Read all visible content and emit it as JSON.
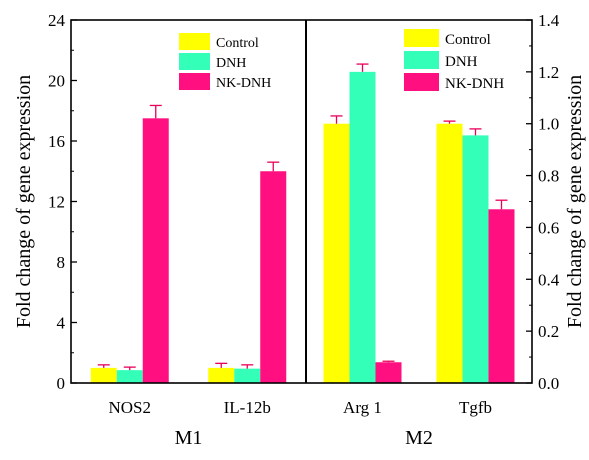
{
  "colors": {
    "control": "#ffff00",
    "dnh": "#33ffb8",
    "nkdnh": "#ff0f80",
    "error_bar": "#e8005a",
    "axis": "#000000"
  },
  "chart_data": [
    {
      "type": "bar",
      "panel_label": "M1",
      "categories": [
        "NOS2",
        "IL-12b"
      ],
      "ylabel": "Fold change of gene expression",
      "ylim": [
        0,
        24
      ],
      "yticks": [
        0,
        4,
        8,
        12,
        16,
        20,
        24
      ],
      "ytick_labels": [
        "0",
        "4",
        "8",
        "12",
        "16",
        "20",
        "24"
      ],
      "legend_position": "top-right",
      "series": [
        {
          "name": "Control",
          "values": [
            1.0,
            1.0
          ],
          "errors": [
            0.2,
            0.3
          ]
        },
        {
          "name": "DNH",
          "values": [
            0.85,
            0.95
          ],
          "errors": [
            0.2,
            0.25
          ]
        },
        {
          "name": "NK-DNH",
          "values": [
            17.5,
            14.0
          ],
          "errors": [
            0.85,
            0.6
          ]
        }
      ]
    },
    {
      "type": "bar",
      "panel_label": "M2",
      "categories": [
        "Arg 1",
        "Tgfb"
      ],
      "ylabel": "Fold change of gene expression",
      "ylim": [
        0,
        1.4
      ],
      "yticks": [
        0,
        0.2,
        0.4,
        0.6,
        0.8,
        1.0,
        1.2,
        1.4
      ],
      "ytick_labels": [
        "0.0",
        "0.2",
        "0.4",
        "0.6",
        "0.8",
        "1.0",
        "1.2",
        "1.4"
      ],
      "legend_position": "top-left",
      "series": [
        {
          "name": "Control",
          "values": [
            1.0,
            1.0
          ],
          "errors": [
            0.03,
            0.01
          ]
        },
        {
          "name": "DNH",
          "values": [
            1.2,
            0.955
          ],
          "errors": [
            0.03,
            0.025
          ]
        },
        {
          "name": "NK-DNH",
          "values": [
            0.08,
            0.67
          ],
          "errors": [
            0.004,
            0.035
          ]
        }
      ]
    }
  ]
}
